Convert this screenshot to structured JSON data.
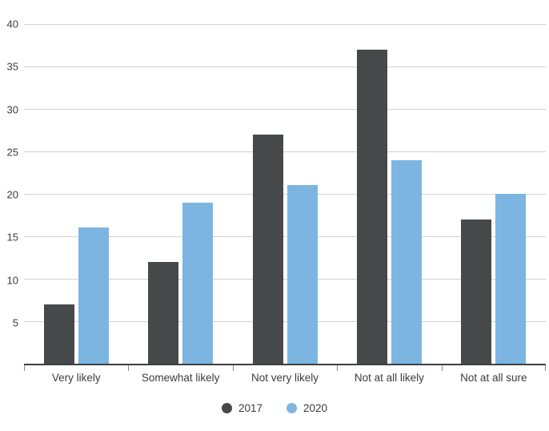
{
  "chart_data": {
    "type": "bar",
    "categories": [
      "Very likely",
      "Somewhat likely",
      "Not very likely",
      "Not at all likely",
      "Not at all sure"
    ],
    "series": [
      {
        "name": "2017",
        "color": "#47484a",
        "values": [
          7,
          12,
          27,
          37,
          17
        ]
      },
      {
        "name": "2020",
        "color": "#7cb5e2",
        "values": [
          16,
          19,
          21,
          24,
          20
        ]
      }
    ],
    "title": "",
    "xlabel": "",
    "ylabel": "",
    "ylim": [
      0,
      40
    ],
    "ytick_step": 5,
    "grid": true,
    "legend_position": "bottom"
  },
  "colors": {
    "background": "#ffffff",
    "grid": "#d2d2d2",
    "axis": "#3f3f3f",
    "tick": "#8a8a8a",
    "label_text": "#3c3c3c"
  }
}
